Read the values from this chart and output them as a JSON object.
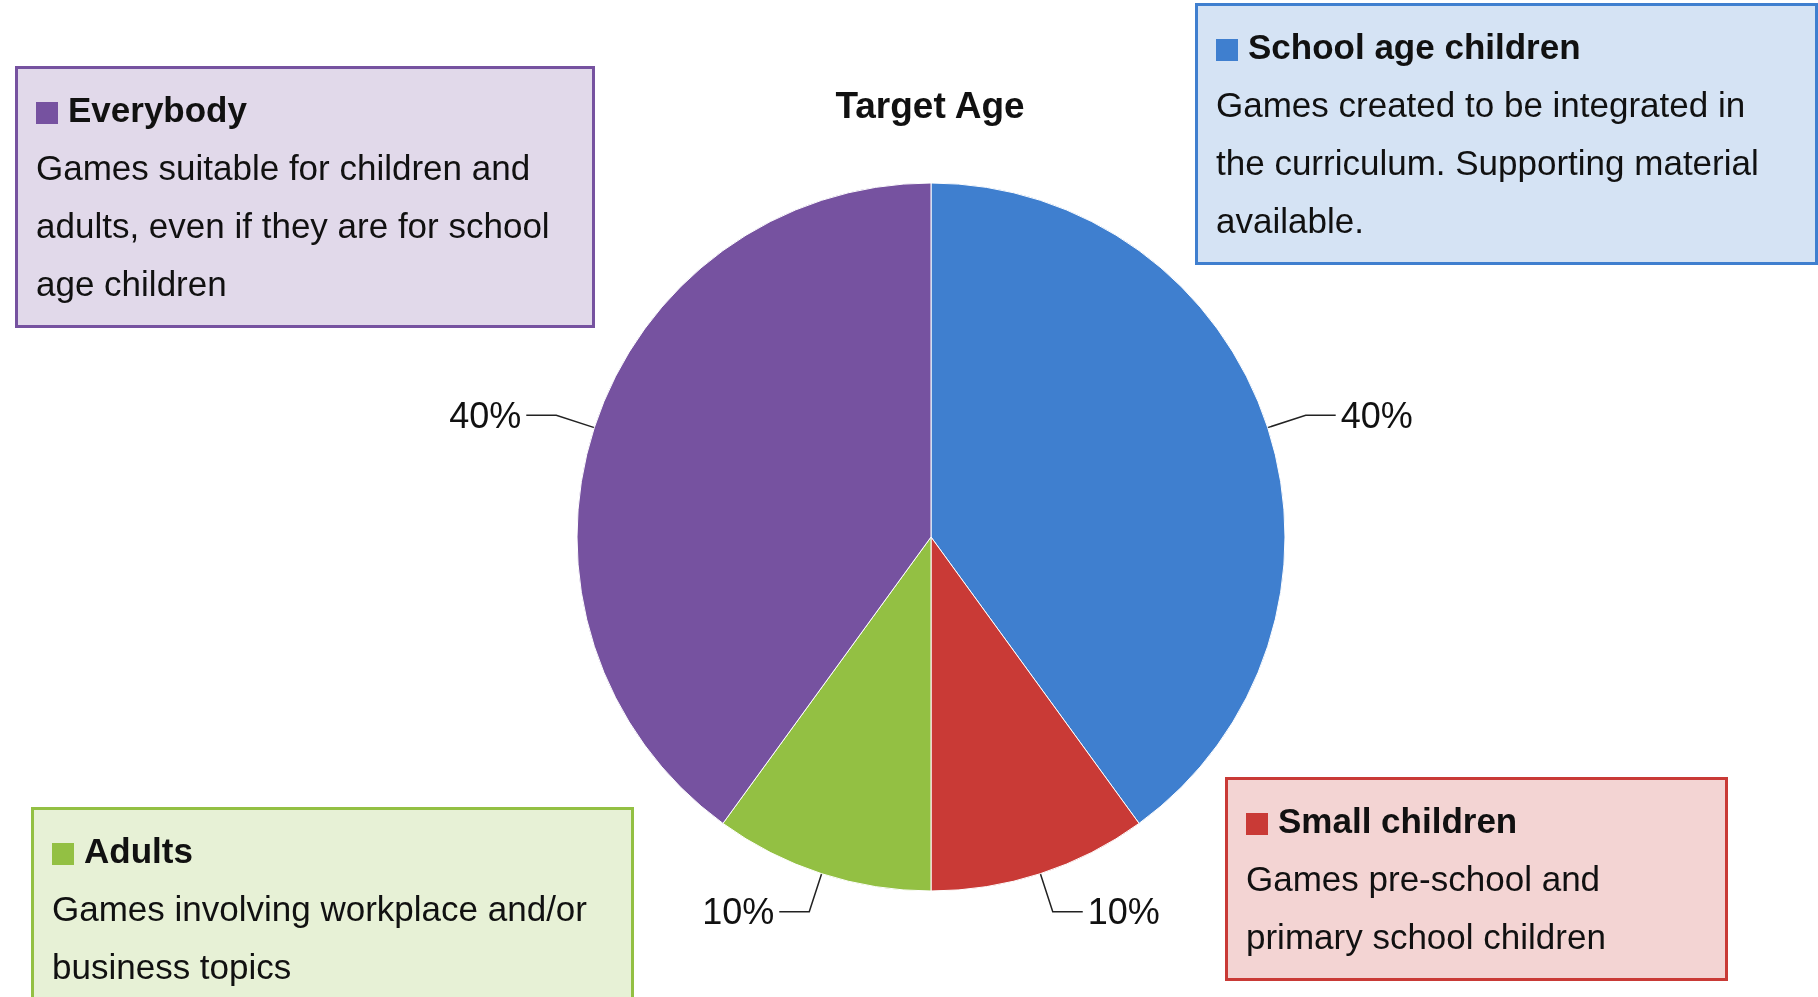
{
  "chart_data": {
    "type": "pie",
    "title": "Target Age",
    "categories": [
      "School age children",
      "Small children",
      "Adults",
      "Everybody"
    ],
    "values": [
      40,
      10,
      10,
      40
    ],
    "value_labels": [
      "40%",
      "10%",
      "10%",
      "40%"
    ],
    "colors": [
      "#3f7fcf",
      "#c93a36",
      "#93c043",
      "#7652a0"
    ],
    "annotations": [
      "Games created to be integrated in the curriculum. Supporting material available.",
      "Games pre-school and primary school children",
      "Games involving workplace and/or business topics",
      "Games suitable for children and adults, even if they are for school age children"
    ],
    "legend": "top"
  }
}
